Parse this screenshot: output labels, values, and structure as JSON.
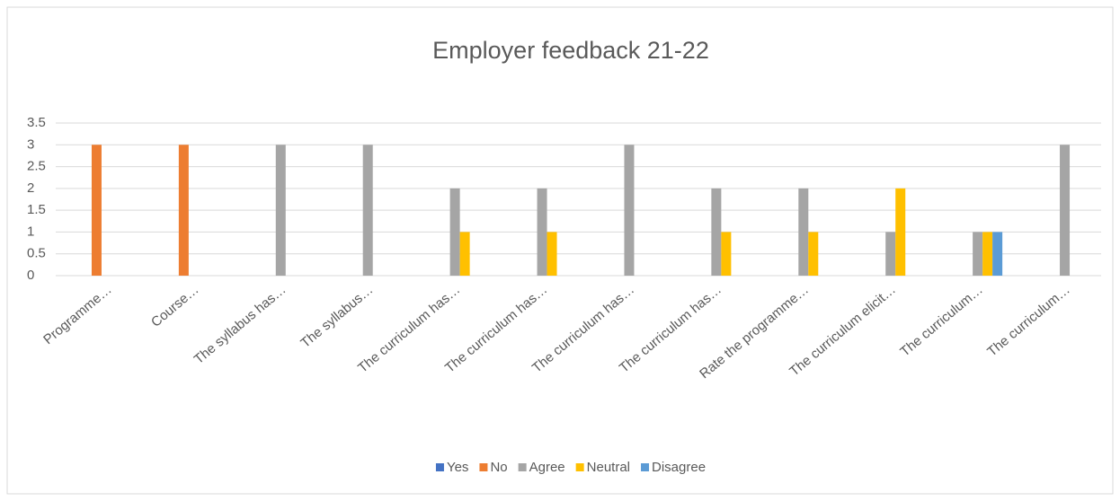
{
  "chart_data": {
    "type": "bar",
    "title": "Employer feedback 21-22",
    "categories": [
      "Programme…",
      "Course…",
      "The syllabus has…",
      "The syllabus…",
      "The curriculum has…",
      "The curriculum has…",
      "The curriculum has…",
      "The curriculum has…",
      "Rate the programme…",
      "The curriculum elicit…",
      "The curriculum…",
      "The curriculum…"
    ],
    "series": [
      {
        "name": "Yes",
        "color": "#4472c4",
        "values": [
          null,
          null,
          null,
          null,
          null,
          null,
          null,
          null,
          null,
          null,
          null,
          null
        ]
      },
      {
        "name": "No",
        "color": "#ed7d31",
        "values": [
          3,
          3,
          null,
          null,
          null,
          null,
          null,
          null,
          null,
          null,
          null,
          null
        ]
      },
      {
        "name": "Agree",
        "color": "#a5a5a5",
        "values": [
          null,
          null,
          3,
          3,
          2,
          2,
          3,
          2,
          2,
          1,
          1,
          3
        ]
      },
      {
        "name": "Neutral",
        "color": "#ffc000",
        "values": [
          null,
          null,
          null,
          null,
          1,
          1,
          null,
          1,
          1,
          2,
          1,
          null
        ]
      },
      {
        "name": "Disagree",
        "color": "#5b9bd5",
        "values": [
          null,
          null,
          null,
          null,
          null,
          null,
          null,
          null,
          null,
          null,
          1,
          null
        ]
      }
    ],
    "ylim": [
      0,
      3.5
    ],
    "yticks": [
      0,
      0.5,
      1,
      1.5,
      2,
      2.5,
      3,
      3.5
    ],
    "grid": true,
    "legend": "bottom"
  }
}
